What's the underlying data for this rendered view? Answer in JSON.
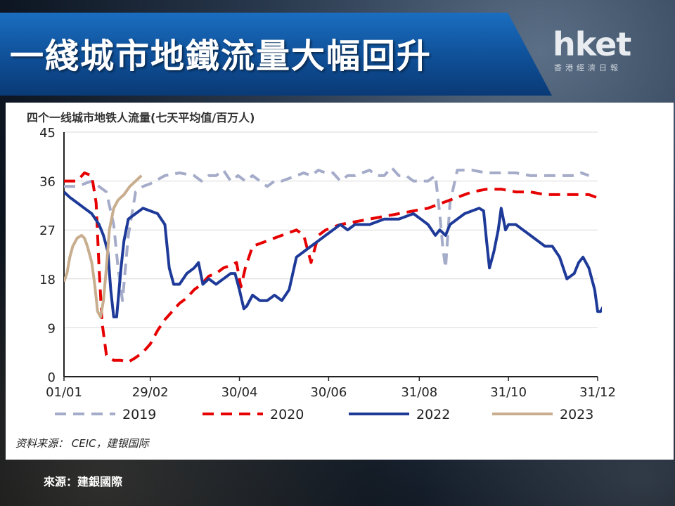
{
  "header": {
    "title": "一綫城市地鐵流量大幅回升",
    "logo_main": "hket",
    "logo_sub": "香港經濟日報"
  },
  "chart": {
    "source_note": "资料来源： CEIC，建银国际"
  },
  "footer": {
    "source": "來源：建銀國際"
  },
  "chart_data": {
    "type": "line",
    "title": "四个一线城市地铁人流量(七天平均值/百万人)",
    "xlabel": "",
    "ylabel": "",
    "x_ticks": [
      "01/01",
      "29/02",
      "30/04",
      "30/06",
      "31/08",
      "31/10",
      "31/12"
    ],
    "x_tick_days": [
      1,
      60,
      121,
      182,
      244,
      305,
      366
    ],
    "xlim": [
      1,
      366
    ],
    "y_ticks": [
      "0",
      "9",
      "18",
      "27",
      "36",
      "45"
    ],
    "ylim": [
      0,
      45
    ],
    "grid": "horizontal",
    "legend_position": "bottom",
    "series": [
      {
        "name": "2019",
        "color": "#a5acc9",
        "style": "dashed",
        "points": [
          [
            1,
            35
          ],
          [
            10,
            35
          ],
          [
            20,
            36
          ],
          [
            30,
            34
          ],
          [
            35,
            28
          ],
          [
            38,
            20
          ],
          [
            41,
            14
          ],
          [
            45,
            26
          ],
          [
            50,
            34
          ],
          [
            55,
            35
          ],
          [
            60,
            35.5
          ],
          [
            70,
            37
          ],
          [
            80,
            37.5
          ],
          [
            90,
            37
          ],
          [
            95,
            36
          ],
          [
            100,
            37
          ],
          [
            105,
            37
          ],
          [
            110,
            38
          ],
          [
            115,
            36
          ],
          [
            120,
            37
          ],
          [
            125,
            36
          ],
          [
            130,
            37
          ],
          [
            135,
            36
          ],
          [
            140,
            35
          ],
          [
            145,
            36
          ],
          [
            150,
            36
          ],
          [
            160,
            37
          ],
          [
            165,
            37.5
          ],
          [
            170,
            37
          ],
          [
            175,
            38
          ],
          [
            180,
            37.5
          ],
          [
            185,
            37.5
          ],
          [
            190,
            36
          ],
          [
            195,
            37
          ],
          [
            200,
            37
          ],
          [
            205,
            37.5
          ],
          [
            210,
            38
          ],
          [
            215,
            37
          ],
          [
            220,
            37
          ],
          [
            225,
            38.5
          ],
          [
            230,
            37
          ],
          [
            235,
            37
          ],
          [
            240,
            36
          ],
          [
            245,
            36
          ],
          [
            250,
            36
          ],
          [
            255,
            37
          ],
          [
            258,
            30
          ],
          [
            260,
            24
          ],
          [
            262,
            20
          ],
          [
            265,
            32
          ],
          [
            270,
            38
          ],
          [
            280,
            38
          ],
          [
            290,
            37.5
          ],
          [
            300,
            37.5
          ],
          [
            310,
            37.5
          ],
          [
            320,
            37
          ],
          [
            330,
            37
          ],
          [
            340,
            37
          ],
          [
            350,
            37
          ],
          [
            355,
            37.5
          ],
          [
            360,
            37
          ]
        ]
      },
      {
        "name": "2020",
        "color": "#e60000",
        "style": "dashed",
        "points": [
          [
            1,
            36
          ],
          [
            10,
            36
          ],
          [
            15,
            37.5
          ],
          [
            20,
            37
          ],
          [
            23,
            32
          ],
          [
            25,
            20
          ],
          [
            27,
            10
          ],
          [
            30,
            4
          ],
          [
            35,
            3
          ],
          [
            40,
            3
          ],
          [
            45,
            2.7
          ],
          [
            50,
            3.5
          ],
          [
            55,
            4.5
          ],
          [
            60,
            6
          ],
          [
            65,
            8.5
          ],
          [
            70,
            10.5
          ],
          [
            75,
            12
          ],
          [
            80,
            13.5
          ],
          [
            85,
            14.5
          ],
          [
            90,
            16
          ],
          [
            95,
            17
          ],
          [
            100,
            18.5
          ],
          [
            105,
            19
          ],
          [
            110,
            20
          ],
          [
            115,
            20.5
          ],
          [
            119,
            21
          ],
          [
            122,
            16.5
          ],
          [
            125,
            20
          ],
          [
            130,
            24
          ],
          [
            140,
            25
          ],
          [
            150,
            26
          ],
          [
            160,
            27
          ],
          [
            165,
            26
          ],
          [
            170,
            21
          ],
          [
            175,
            26
          ],
          [
            180,
            27
          ],
          [
            190,
            28
          ],
          [
            200,
            28.5
          ],
          [
            210,
            29
          ],
          [
            220,
            29.5
          ],
          [
            230,
            30
          ],
          [
            240,
            30.5
          ],
          [
            250,
            31
          ],
          [
            260,
            32
          ],
          [
            270,
            33
          ],
          [
            280,
            34
          ],
          [
            290,
            34.5
          ],
          [
            300,
            34.5
          ],
          [
            310,
            34
          ],
          [
            320,
            34
          ],
          [
            330,
            33.5
          ],
          [
            340,
            33.5
          ],
          [
            350,
            33.5
          ],
          [
            360,
            33.5
          ],
          [
            365,
            33
          ]
        ]
      },
      {
        "name": "2022",
        "color": "#1e3a99",
        "style": "solid",
        "points": [
          [
            1,
            34
          ],
          [
            5,
            33
          ],
          [
            10,
            32
          ],
          [
            15,
            31
          ],
          [
            20,
            30
          ],
          [
            25,
            28
          ],
          [
            28,
            26
          ],
          [
            31,
            23
          ],
          [
            33,
            16
          ],
          [
            35,
            11
          ],
          [
            37,
            11
          ],
          [
            40,
            20
          ],
          [
            42,
            25
          ],
          [
            45,
            29
          ],
          [
            50,
            30
          ],
          [
            55,
            31
          ],
          [
            60,
            30.5
          ],
          [
            65,
            30
          ],
          [
            70,
            28
          ],
          [
            73,
            20
          ],
          [
            76,
            17
          ],
          [
            80,
            17
          ],
          [
            85,
            19
          ],
          [
            90,
            20
          ],
          [
            93,
            21
          ],
          [
            96,
            17
          ],
          [
            100,
            18
          ],
          [
            105,
            17
          ],
          [
            110,
            18
          ],
          [
            115,
            19
          ],
          [
            118,
            19
          ],
          [
            121,
            16
          ],
          [
            124,
            12.5
          ],
          [
            126,
            13
          ],
          [
            130,
            15
          ],
          [
            135,
            14
          ],
          [
            140,
            14
          ],
          [
            145,
            15
          ],
          [
            150,
            14
          ],
          [
            155,
            16
          ],
          [
            160,
            22
          ],
          [
            165,
            23
          ],
          [
            170,
            24
          ],
          [
            175,
            25
          ],
          [
            180,
            26
          ],
          [
            185,
            27
          ],
          [
            190,
            28
          ],
          [
            195,
            27
          ],
          [
            200,
            28
          ],
          [
            210,
            28
          ],
          [
            220,
            29
          ],
          [
            230,
            29
          ],
          [
            240,
            30
          ],
          [
            245,
            29
          ],
          [
            250,
            28
          ],
          [
            255,
            26
          ],
          [
            258,
            27
          ],
          [
            262,
            26
          ],
          [
            265,
            28
          ],
          [
            270,
            29
          ],
          [
            275,
            30
          ],
          [
            280,
            30.5
          ],
          [
            285,
            31
          ],
          [
            288,
            30.5
          ],
          [
            290,
            25
          ],
          [
            292,
            20
          ],
          [
            295,
            23
          ],
          [
            298,
            27
          ],
          [
            300,
            31
          ],
          [
            303,
            27
          ],
          [
            305,
            28
          ],
          [
            310,
            28
          ],
          [
            315,
            27
          ],
          [
            320,
            26
          ],
          [
            325,
            25
          ],
          [
            330,
            24
          ],
          [
            335,
            24
          ],
          [
            340,
            22
          ],
          [
            345,
            18
          ],
          [
            350,
            19
          ],
          [
            353,
            21
          ],
          [
            356,
            22
          ],
          [
            360,
            20
          ],
          [
            364,
            16
          ],
          [
            366,
            12
          ],
          [
            368,
            12
          ],
          [
            372,
            14
          ],
          [
            375,
            17
          ]
        ]
      },
      {
        "name": "2023",
        "color": "#c8ae8e",
        "style": "solid",
        "points": [
          [
            1,
            17.5
          ],
          [
            3,
            19
          ],
          [
            5,
            22
          ],
          [
            7,
            24
          ],
          [
            10,
            25.5
          ],
          [
            13,
            26
          ],
          [
            15,
            25.5
          ],
          [
            17,
            24
          ],
          [
            20,
            21
          ],
          [
            22,
            17
          ],
          [
            24,
            12
          ],
          [
            26,
            11
          ],
          [
            28,
            14
          ],
          [
            30,
            20
          ],
          [
            32,
            27
          ],
          [
            35,
            31
          ],
          [
            38,
            32.5
          ],
          [
            42,
            33.5
          ],
          [
            46,
            35
          ],
          [
            50,
            36
          ],
          [
            54,
            37
          ]
        ]
      }
    ]
  }
}
